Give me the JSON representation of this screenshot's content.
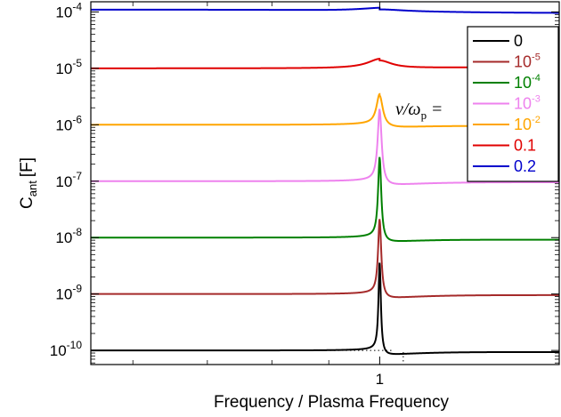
{
  "chart_data": {
    "type": "line",
    "xlabel": "Frequency / Plasma Frequency",
    "ylabel_main": "C",
    "ylabel_sub": "ant",
    "ylabel_unit": "[F]",
    "x_scale": "log",
    "y_scale": "log",
    "xlim": [
      0.55,
      1.45
    ],
    "ylim_log10": [
      -10.25,
      -3.82
    ],
    "x_ticks": [
      {
        "value": 1,
        "label": "1"
      }
    ],
    "y_ticks": [
      {
        "exp": -10,
        "base": "10",
        "sup": "-10"
      },
      {
        "exp": -9,
        "base": "10",
        "sup": "-9"
      },
      {
        "exp": -8,
        "base": "10",
        "sup": "-8"
      },
      {
        "exp": -7,
        "base": "10",
        "sup": "-7"
      },
      {
        "exp": -6,
        "base": "10",
        "sup": "-6"
      },
      {
        "exp": -5,
        "base": "10",
        "sup": "-5"
      },
      {
        "exp": -4,
        "base": "10",
        "sup": "-4"
      }
    ],
    "legend": {
      "placement": "top-right",
      "title_main": "ν/ω",
      "title_sub": "p",
      "title_eq": "="
    },
    "series": [
      {
        "name": "0",
        "label_base": "0",
        "label_sup": "",
        "color": "#000000",
        "base": -10.0,
        "peak": -8.42,
        "after": -10.1,
        "tail": -10.03,
        "width": 0.003
      },
      {
        "name": "10^-5",
        "label_base": "10",
        "label_sup": "-5",
        "color": "#a52a2a",
        "base": -9.0,
        "peak": -7.65,
        "after": -9.1,
        "tail": -9.02,
        "width": 0.004
      },
      {
        "name": "10^-4",
        "label_base": "10",
        "label_sup": "-4",
        "color": "#008000",
        "base": -8.0,
        "peak": -6.55,
        "after": -8.1,
        "tail": -8.04,
        "width": 0.004
      },
      {
        "name": "10^-3",
        "label_base": "10",
        "label_sup": "-3",
        "color": "#ee82ee",
        "base": -7.0,
        "peak": -5.7,
        "after": -7.1,
        "tail": -7.02,
        "width": 0.005
      },
      {
        "name": "10^-2",
        "label_base": "10",
        "label_sup": "-2",
        "color": "#ffa500",
        "base": -6.0,
        "peak": -5.45,
        "after": -6.07,
        "tail": -6.02,
        "width": 0.008
      },
      {
        "name": "0.1",
        "label_base": "0.1",
        "label_sup": "",
        "color": "#e00000",
        "base": -5.0,
        "peak": -4.86,
        "after": -5.0,
        "tail": -4.98,
        "width": 0.03
      },
      {
        "name": "0.2",
        "label_base": "0.2",
        "label_sup": "",
        "color": "#0000cc",
        "base": -3.96,
        "peak": -3.92,
        "after": -4.03,
        "tail": -4.02,
        "width": 0.06
      }
    ]
  }
}
